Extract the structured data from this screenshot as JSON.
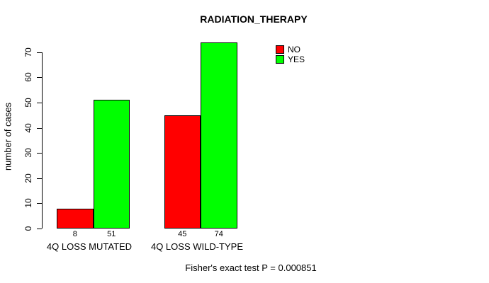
{
  "chart_data": {
    "type": "bar",
    "title": "RADIATION_THERAPY",
    "xlabel": "",
    "ylabel": "number of cases",
    "ylim": [
      0,
      70
    ],
    "yticks": [
      0,
      10,
      20,
      30,
      40,
      50,
      60,
      70
    ],
    "categories": [
      "4Q LOSS MUTATED",
      "4Q LOSS WILD-TYPE"
    ],
    "series": [
      {
        "name": "NO",
        "color": "#ff0000",
        "values": [
          8,
          45
        ]
      },
      {
        "name": "YES",
        "color": "#00ff00",
        "values": [
          51,
          74
        ]
      }
    ],
    "bar_value_labels": [
      [
        8,
        51
      ],
      [
        45,
        74
      ]
    ],
    "legend": {
      "position": "top-right",
      "entries": [
        "NO",
        "YES"
      ]
    },
    "grid": false,
    "annotation": "Fisher's exact test P = 0.000851"
  },
  "colors": {
    "background": "#ffffff",
    "axis": "#000000",
    "text": "#000000",
    "no": "#ff0000",
    "yes": "#00ff00"
  }
}
